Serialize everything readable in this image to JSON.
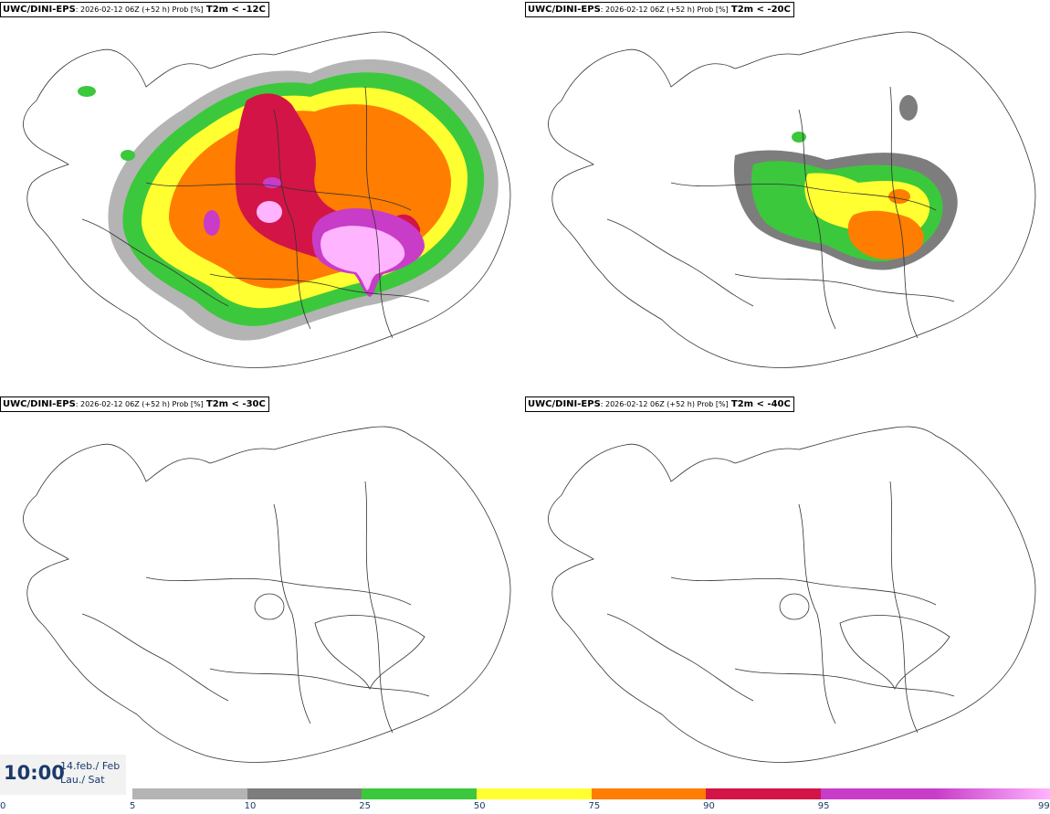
{
  "panels": [
    {
      "model": "UWC/DINI-EPS",
      "info": ": 2026-02-12 06Z (+52 h) Prob [%]",
      "variable": "T2m < -12C"
    },
    {
      "model": "UWC/DINI-EPS",
      "info": ": 2026-02-12 06Z (+52 h) Prob [%]",
      "variable": "T2m < -20C"
    },
    {
      "model": "UWC/DINI-EPS",
      "info": ": 2026-02-12 06Z (+52 h) Prob [%]",
      "variable": "T2m < -30C"
    },
    {
      "model": "UWC/DINI-EPS",
      "info": ": 2026-02-12 06Z (+52 h) Prob [%]",
      "variable": "T2m < -40C"
    }
  ],
  "time": {
    "clock": "10:00",
    "date_line1": "14.feb./ Feb",
    "date_line2": "Lau./ Sat"
  },
  "legend": {
    "ticks": [
      "0",
      "5",
      "10",
      "25",
      "50",
      "75",
      "90",
      "95",
      "99"
    ],
    "colors": [
      "#b4b4b4",
      "#7d7d7d",
      "#3cc83c",
      "#ffff32",
      "#ff7d00",
      "#d21446",
      "#c83cc8",
      "#ffb4ff"
    ]
  }
}
